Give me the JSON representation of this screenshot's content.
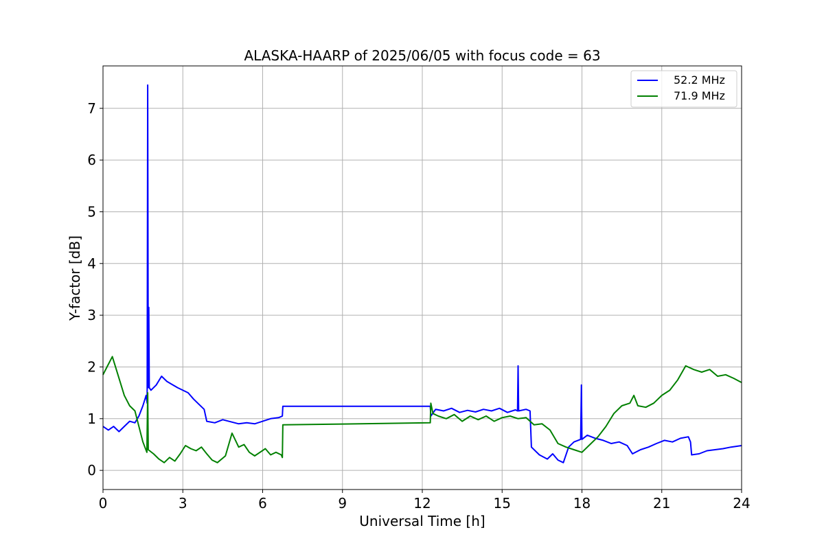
{
  "chart_data": {
    "type": "line",
    "title": "ALASKA-HAARP of 2025/06/05 with focus code = 63",
    "xlabel": "Universal Time [h]",
    "ylabel": "Y-factor [dB]",
    "xlim": [
      0,
      24
    ],
    "ylim": [
      -0.37,
      7.82
    ],
    "xticks": [
      0,
      3,
      6,
      9,
      12,
      15,
      18,
      21,
      24
    ],
    "yticks": [
      0,
      1,
      2,
      3,
      4,
      5,
      6,
      7
    ],
    "grid": true,
    "legend_position": "top-right",
    "series": [
      {
        "name": "52.2 MHz",
        "color": "#0000ff",
        "points": [
          [
            0.0,
            0.85
          ],
          [
            0.2,
            0.78
          ],
          [
            0.4,
            0.85
          ],
          [
            0.6,
            0.75
          ],
          [
            0.8,
            0.85
          ],
          [
            1.0,
            0.95
          ],
          [
            1.2,
            0.92
          ],
          [
            1.35,
            1.05
          ],
          [
            1.5,
            1.25
          ],
          [
            1.62,
            1.45
          ],
          [
            1.66,
            1.3
          ],
          [
            1.68,
            7.45
          ],
          [
            1.7,
            1.6
          ],
          [
            1.72,
            3.15
          ],
          [
            1.74,
            1.6
          ],
          [
            1.8,
            1.55
          ],
          [
            2.0,
            1.65
          ],
          [
            2.2,
            1.82
          ],
          [
            2.4,
            1.72
          ],
          [
            2.6,
            1.66
          ],
          [
            2.8,
            1.6
          ],
          [
            3.0,
            1.55
          ],
          [
            3.2,
            1.5
          ],
          [
            3.4,
            1.38
          ],
          [
            3.6,
            1.28
          ],
          [
            3.8,
            1.18
          ],
          [
            3.9,
            0.95
          ],
          [
            4.2,
            0.92
          ],
          [
            4.5,
            0.98
          ],
          [
            4.8,
            0.94
          ],
          [
            5.1,
            0.9
          ],
          [
            5.4,
            0.92
          ],
          [
            5.7,
            0.9
          ],
          [
            6.0,
            0.95
          ],
          [
            6.3,
            1.0
          ],
          [
            6.6,
            1.02
          ],
          [
            6.74,
            1.05
          ],
          [
            6.76,
            1.24
          ],
          [
            12.3,
            1.24
          ],
          [
            12.32,
            1.05
          ],
          [
            12.5,
            1.18
          ],
          [
            12.8,
            1.15
          ],
          [
            13.1,
            1.2
          ],
          [
            13.4,
            1.12
          ],
          [
            13.7,
            1.16
          ],
          [
            14.0,
            1.13
          ],
          [
            14.3,
            1.18
          ],
          [
            14.6,
            1.15
          ],
          [
            14.9,
            1.2
          ],
          [
            15.2,
            1.12
          ],
          [
            15.5,
            1.17
          ],
          [
            15.58,
            1.15
          ],
          [
            15.6,
            2.02
          ],
          [
            15.62,
            1.15
          ],
          [
            15.9,
            1.18
          ],
          [
            16.05,
            1.15
          ],
          [
            16.1,
            0.45
          ],
          [
            16.4,
            0.3
          ],
          [
            16.7,
            0.22
          ],
          [
            16.9,
            0.32
          ],
          [
            17.1,
            0.2
          ],
          [
            17.3,
            0.15
          ],
          [
            17.5,
            0.45
          ],
          [
            17.7,
            0.55
          ],
          [
            17.95,
            0.6
          ],
          [
            17.98,
            1.65
          ],
          [
            18.0,
            0.6
          ],
          [
            18.2,
            0.68
          ],
          [
            18.5,
            0.62
          ],
          [
            18.8,
            0.58
          ],
          [
            19.1,
            0.52
          ],
          [
            19.4,
            0.55
          ],
          [
            19.7,
            0.48
          ],
          [
            19.9,
            0.32
          ],
          [
            20.2,
            0.4
          ],
          [
            20.5,
            0.45
          ],
          [
            20.8,
            0.52
          ],
          [
            21.1,
            0.58
          ],
          [
            21.4,
            0.55
          ],
          [
            21.7,
            0.62
          ],
          [
            22.0,
            0.65
          ],
          [
            22.08,
            0.55
          ],
          [
            22.12,
            0.3
          ],
          [
            22.4,
            0.32
          ],
          [
            22.7,
            0.38
          ],
          [
            23.0,
            0.4
          ],
          [
            23.3,
            0.42
          ],
          [
            23.6,
            0.45
          ],
          [
            24.0,
            0.48
          ]
        ]
      },
      {
        "name": "71.9 MHz",
        "color": "#008000",
        "points": [
          [
            0.0,
            1.85
          ],
          [
            0.15,
            2.0
          ],
          [
            0.35,
            2.2
          ],
          [
            0.5,
            1.95
          ],
          [
            0.65,
            1.7
          ],
          [
            0.8,
            1.45
          ],
          [
            1.0,
            1.25
          ],
          [
            1.2,
            1.15
          ],
          [
            1.35,
            0.85
          ],
          [
            1.5,
            0.55
          ],
          [
            1.65,
            0.35
          ],
          [
            1.68,
            1.5
          ],
          [
            1.7,
            0.4
          ],
          [
            1.9,
            0.32
          ],
          [
            2.1,
            0.22
          ],
          [
            2.3,
            0.15
          ],
          [
            2.5,
            0.25
          ],
          [
            2.7,
            0.18
          ],
          [
            2.9,
            0.32
          ],
          [
            3.1,
            0.48
          ],
          [
            3.3,
            0.42
          ],
          [
            3.5,
            0.38
          ],
          [
            3.7,
            0.45
          ],
          [
            3.9,
            0.32
          ],
          [
            4.1,
            0.2
          ],
          [
            4.3,
            0.15
          ],
          [
            4.6,
            0.28
          ],
          [
            4.85,
            0.72
          ],
          [
            5.1,
            0.45
          ],
          [
            5.3,
            0.5
          ],
          [
            5.5,
            0.35
          ],
          [
            5.7,
            0.28
          ],
          [
            5.9,
            0.35
          ],
          [
            6.1,
            0.42
          ],
          [
            6.3,
            0.3
          ],
          [
            6.5,
            0.35
          ],
          [
            6.7,
            0.3
          ],
          [
            6.74,
            0.25
          ],
          [
            6.76,
            0.88
          ],
          [
            12.3,
            0.92
          ],
          [
            12.32,
            1.3
          ],
          [
            12.4,
            1.1
          ],
          [
            12.6,
            1.05
          ],
          [
            12.9,
            1.0
          ],
          [
            13.2,
            1.08
          ],
          [
            13.5,
            0.95
          ],
          [
            13.8,
            1.05
          ],
          [
            14.1,
            0.98
          ],
          [
            14.4,
            1.05
          ],
          [
            14.7,
            0.95
          ],
          [
            15.0,
            1.02
          ],
          [
            15.3,
            1.05
          ],
          [
            15.6,
            1.0
          ],
          [
            15.9,
            1.02
          ],
          [
            16.2,
            0.88
          ],
          [
            16.5,
            0.9
          ],
          [
            16.8,
            0.78
          ],
          [
            17.1,
            0.52
          ],
          [
            17.4,
            0.45
          ],
          [
            17.7,
            0.4
          ],
          [
            18.0,
            0.35
          ],
          [
            18.3,
            0.5
          ],
          [
            18.6,
            0.65
          ],
          [
            18.9,
            0.85
          ],
          [
            19.2,
            1.1
          ],
          [
            19.5,
            1.25
          ],
          [
            19.8,
            1.3
          ],
          [
            19.95,
            1.45
          ],
          [
            20.1,
            1.25
          ],
          [
            20.4,
            1.22
          ],
          [
            20.7,
            1.3
          ],
          [
            21.0,
            1.45
          ],
          [
            21.3,
            1.55
          ],
          [
            21.6,
            1.75
          ],
          [
            21.9,
            2.02
          ],
          [
            22.2,
            1.95
          ],
          [
            22.5,
            1.9
          ],
          [
            22.8,
            1.95
          ],
          [
            23.1,
            1.82
          ],
          [
            23.4,
            1.85
          ],
          [
            23.7,
            1.78
          ],
          [
            24.0,
            1.7
          ]
        ]
      }
    ]
  }
}
